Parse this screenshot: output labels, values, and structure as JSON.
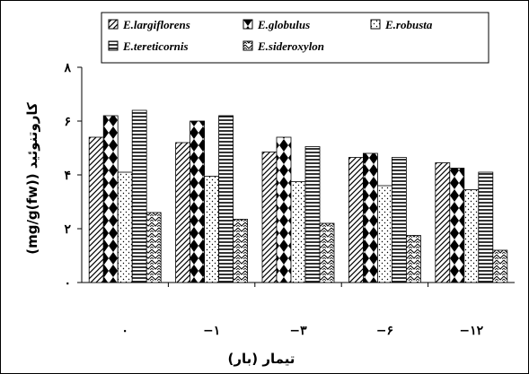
{
  "chart_data": {
    "type": "bar",
    "title": "",
    "xlabel": "تیمار (بار)",
    "ylabel": "(mg/g(fw)) کاروتنوئید",
    "ylim": [
      0,
      8
    ],
    "yticks": [
      "۰",
      "۲",
      "۴",
      "۶",
      "۸"
    ],
    "ytick_values": [
      0,
      2,
      4,
      6,
      8
    ],
    "categories": [
      "۰",
      "−۱",
      "−۳",
      "−۶",
      "−۱۲"
    ],
    "series": [
      {
        "name": "E.largiflorens",
        "color": "#ffffff",
        "pattern": "diagonal-stripes",
        "values": [
          5.4,
          5.2,
          4.85,
          4.65,
          4.45
        ]
      },
      {
        "name": "E.globulus",
        "color": "#000000",
        "pattern": "diamonds",
        "values": [
          6.2,
          6.0,
          5.4,
          4.8,
          4.25
        ]
      },
      {
        "name": "E.robusta",
        "color": "#ffffff",
        "pattern": "dots",
        "values": [
          4.1,
          3.95,
          3.75,
          3.6,
          3.45
        ]
      },
      {
        "name": "E.tereticornis",
        "color": "#ffffff",
        "pattern": "horizontal-lines",
        "values": [
          6.4,
          6.2,
          5.05,
          4.65,
          4.1
        ]
      },
      {
        "name": "E.sideroxylon",
        "color": "#ffffff",
        "pattern": "zigzag",
        "values": [
          2.6,
          2.35,
          2.2,
          1.75,
          1.2
        ]
      }
    ],
    "grid": false,
    "legend_position": "top"
  }
}
